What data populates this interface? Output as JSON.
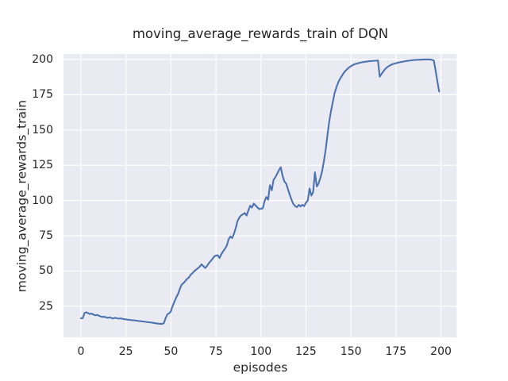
{
  "chart": {
    "title": "moving_average_rewards_train of DQN",
    "xlabel": "episodes",
    "ylabel": "moving_average_rewards_train"
  },
  "colors": {
    "plot_background": "#EAEAF2",
    "grid": "#FFFFFF",
    "line": "#4C72B0",
    "text": "#262626",
    "figure_background": "#FFFFFF"
  },
  "chart_data": {
    "type": "line",
    "title": "moving_average_rewards_train of DQN",
    "xlabel": "episodes",
    "ylabel": "moving_average_rewards_train",
    "legend": null,
    "grid": true,
    "background": "#EAEAF2",
    "grid_color": "#FFFFFF",
    "line_color": "#4C72B0",
    "x_ticks": [
      0,
      25,
      50,
      75,
      100,
      125,
      150,
      175,
      200
    ],
    "y_ticks": [
      25,
      50,
      75,
      100,
      125,
      150,
      175,
      200
    ],
    "xlim": [
      -9.7,
      208.8
    ],
    "ylim": [
      3.0,
      203.9
    ],
    "x_start": 0,
    "x_step": 1,
    "series": [
      {
        "name": "moving_average_rewards_train",
        "values": [
          16.5,
          16.6,
          20.3,
          20.8,
          20.1,
          19.5,
          19.8,
          19.1,
          18.6,
          18.9,
          18.3,
          17.8,
          17.4,
          17.7,
          17.1,
          16.8,
          17.2,
          16.7,
          16.4,
          16.9,
          16.5,
          16.2,
          16.5,
          16.1,
          15.9,
          15.7,
          15.5,
          15.4,
          15.2,
          15.1,
          15.0,
          14.8,
          14.6,
          14.5,
          14.3,
          14.2,
          14.0,
          13.8,
          13.7,
          13.5,
          13.3,
          13.1,
          12.9,
          12.7,
          12.6,
          12.5,
          13.0,
          16.5,
          19.3,
          20.0,
          21.5,
          25.5,
          28.5,
          31.5,
          34.0,
          37.5,
          40.5,
          41.5,
          43.0,
          44.5,
          45.5,
          47.5,
          48.5,
          50.0,
          51.0,
          52.0,
          53.2,
          54.8,
          53.5,
          52.2,
          53.5,
          55.5,
          57.0,
          58.5,
          60.3,
          61.0,
          61.2,
          59.3,
          62.0,
          64.0,
          65.8,
          68.0,
          72.5,
          74.5,
          73.4,
          76.5,
          80.5,
          85.5,
          88.0,
          89.5,
          90.2,
          91.2,
          89.3,
          93.0,
          96.3,
          95.0,
          97.8,
          96.5,
          95.2,
          94.0,
          94.2,
          94.4,
          99.5,
          102.5,
          100.6,
          110.9,
          107.2,
          114.6,
          116.5,
          119.0,
          121.5,
          123.6,
          117.5,
          113.5,
          112.0,
          108.0,
          104.0,
          100.6,
          97.5,
          96.0,
          95.3,
          96.9,
          95.8,
          97.0,
          96.0,
          98.5,
          100.0,
          108.5,
          103.5,
          106.0,
          120.0,
          110.0,
          112.0,
          116.0,
          121.0,
          128.0,
          136.5,
          147.0,
          156.5,
          164.0,
          170.5,
          176.5,
          180.5,
          184.0,
          186.5,
          188.5,
          190.5,
          192.0,
          193.3,
          194.4,
          195.3,
          196.0,
          196.6,
          197.0,
          197.4,
          197.7,
          198.0,
          198.2,
          198.4,
          198.6,
          198.8,
          198.9,
          199.0,
          199.1,
          199.2,
          199.3,
          187.8,
          189.8,
          191.6,
          193.2,
          194.4,
          195.3,
          196.0,
          196.6,
          197.0,
          197.4,
          197.7,
          198.0,
          198.3,
          198.5,
          198.8,
          199.0,
          199.2,
          199.3,
          199.5,
          199.6,
          199.7,
          199.8,
          199.8,
          199.9,
          199.9,
          200.0,
          200.0,
          200.0,
          200.0,
          199.7,
          199.4,
          192.5,
          184.5,
          177.3
        ]
      }
    ]
  }
}
